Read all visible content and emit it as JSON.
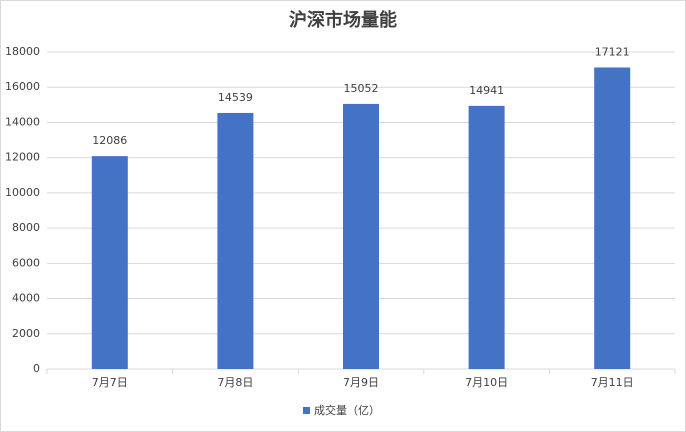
{
  "chart_data": {
    "type": "bar",
    "title": "沪深市场量能",
    "categories": [
      "7月7日",
      "7月8日",
      "7月9日",
      "7月10日",
      "7月11日"
    ],
    "series": [
      {
        "name": "成交量（亿）",
        "color": "#4472c4",
        "values": [
          12086,
          14539,
          15052,
          14941,
          17121
        ]
      }
    ],
    "ylim": [
      0,
      18000
    ],
    "yticks": [
      0,
      2000,
      4000,
      6000,
      8000,
      10000,
      12000,
      14000,
      16000,
      18000
    ],
    "grid": true,
    "legend": "bottom"
  }
}
